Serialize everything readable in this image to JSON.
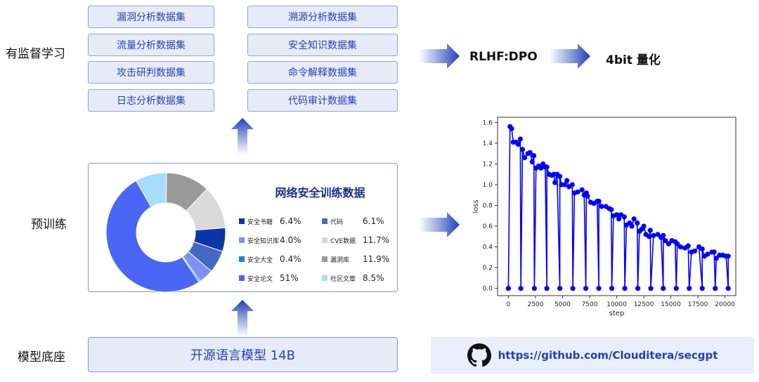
{
  "stages": {
    "sft": "有监督学习",
    "pretrain": "预训练",
    "base": "模型底座"
  },
  "datasets": [
    "漏洞分析数据集",
    "溯源分析数据集",
    "流量分析数据集",
    "安全知识数据集",
    "攻击研判数据集",
    "命令解释数据集",
    "日志分析数据集",
    "代码审计数据集"
  ],
  "pipeline": {
    "rlhf": "RLHF:DPO",
    "quant": "4bit 量化"
  },
  "base_model": "开源语言模型 14B",
  "github": {
    "icon": "github-icon",
    "url": "https://github.com/Clouditera/secgpt"
  },
  "colors": {
    "accent": "#2342b8",
    "box_bg": "#e6ebf7",
    "line": "#0000ff"
  },
  "chart_data": [
    {
      "type": "pie",
      "donut": true,
      "title": "网络安全训练数据",
      "slices": [
        {
          "label": "安全书籍",
          "value": 6.4,
          "text": "6.4%",
          "color": "#0b37a6"
        },
        {
          "label": "代码",
          "value": 6.1,
          "text": "6.1%",
          "color": "#4568c2"
        },
        {
          "label": "安全知识库",
          "value": 4.0,
          "text": "4.0%",
          "color": "#7b92f2"
        },
        {
          "label": "CVE数据",
          "value": 11.7,
          "text": "11.7%",
          "color": "#d9d9d9"
        },
        {
          "label": "安全大全",
          "value": 0.4,
          "text": "0.4%",
          "color": "#1a86cf"
        },
        {
          "label": "漏洞库",
          "value": 11.9,
          "text": "11.9%",
          "color": "#9a9a9a"
        },
        {
          "label": "安全论文",
          "value": 51,
          "text": "51%",
          "color": "#4a66f6"
        },
        {
          "label": "社区文章",
          "value": 8.5,
          "text": "8.5%",
          "color": "#a6ddfa"
        }
      ],
      "clockwise_order": [
        "社区文章",
        "漏洞库",
        "CVE数据",
        "安全书籍",
        "代码",
        "安全知识库",
        "安全大全",
        "安全论文"
      ]
    },
    {
      "type": "line",
      "xlabel": "step",
      "ylabel": "loss",
      "xlim": [
        -1000,
        21000
      ],
      "ylim": [
        -0.07,
        1.65
      ],
      "xticks": [
        0,
        2500,
        5000,
        7500,
        10000,
        12500,
        15000,
        17500,
        20000
      ],
      "yticks": [
        "0.0",
        "0.2",
        "0.4",
        "0.6",
        "0.8",
        "1.0",
        "1.2",
        "1.4",
        "1.6"
      ],
      "grid": false,
      "series_color": "#0000ff",
      "zero_steps": [
        0,
        1150,
        2400,
        3550,
        4750,
        5950,
        7150,
        8350,
        9550,
        10750,
        11950,
        13150,
        14300,
        15500,
        16700,
        17900,
        19100,
        20300
      ],
      "points": [
        [
          150,
          1.56
        ],
        [
          300,
          1.54
        ],
        [
          450,
          1.41
        ],
        [
          700,
          1.41
        ],
        [
          900,
          1.39
        ],
        [
          1100,
          1.44
        ],
        [
          1300,
          1.34
        ],
        [
          1500,
          1.26
        ],
        [
          1800,
          1.3
        ],
        [
          2000,
          1.31
        ],
        [
          2200,
          1.22
        ],
        [
          2350,
          1.28
        ],
        [
          2550,
          1.16
        ],
        [
          2800,
          1.18
        ],
        [
          3000,
          1.16
        ],
        [
          3200,
          1.2
        ],
        [
          3400,
          1.17
        ],
        [
          3550,
          1.17
        ],
        [
          3750,
          1.1
        ],
        [
          4000,
          1.09
        ],
        [
          4200,
          1.1
        ],
        [
          4300,
          1.02
        ],
        [
          4500,
          1.1
        ],
        [
          4750,
          1.08
        ],
        [
          4900,
          1.0
        ],
        [
          5200,
          1.0
        ],
        [
          5400,
          1.04
        ],
        [
          5600,
          0.98
        ],
        [
          5900,
          1.0
        ],
        [
          6100,
          0.92
        ],
        [
          6400,
          0.93
        ],
        [
          6800,
          0.95
        ],
        [
          7000,
          0.9
        ],
        [
          7200,
          0.92
        ],
        [
          7300,
          0.89
        ],
        [
          7600,
          0.83
        ],
        [
          7900,
          0.82
        ],
        [
          8200,
          0.84
        ],
        [
          8350,
          0.84
        ],
        [
          8600,
          0.79
        ],
        [
          9000,
          0.79
        ],
        [
          9300,
          0.77
        ],
        [
          9500,
          0.76
        ],
        [
          9700,
          0.7
        ],
        [
          10000,
          0.71
        ],
        [
          10200,
          0.67
        ],
        [
          10400,
          0.71
        ],
        [
          10700,
          0.69
        ],
        [
          10900,
          0.61
        ],
        [
          11200,
          0.63
        ],
        [
          11400,
          0.6
        ],
        [
          11600,
          0.67
        ],
        [
          11900,
          0.63
        ],
        [
          12100,
          0.55
        ],
        [
          12300,
          0.57
        ],
        [
          12500,
          0.6
        ],
        [
          12700,
          0.52
        ],
        [
          13000,
          0.5
        ],
        [
          13100,
          0.56
        ],
        [
          13400,
          0.51
        ],
        [
          13800,
          0.52
        ],
        [
          14100,
          0.49
        ],
        [
          14300,
          0.51
        ],
        [
          14500,
          0.46
        ],
        [
          14800,
          0.43
        ],
        [
          15100,
          0.46
        ],
        [
          15400,
          0.45
        ],
        [
          15600,
          0.43
        ],
        [
          15900,
          0.4
        ],
        [
          16300,
          0.39
        ],
        [
          16600,
          0.41
        ],
        [
          16900,
          0.35
        ],
        [
          17200,
          0.36
        ],
        [
          17600,
          0.4
        ],
        [
          17900,
          0.38
        ],
        [
          18100,
          0.31
        ],
        [
          18400,
          0.33
        ],
        [
          18800,
          0.35
        ],
        [
          19000,
          0.35
        ],
        [
          19200,
          0.29
        ],
        [
          19500,
          0.32
        ],
        [
          19800,
          0.32
        ],
        [
          20100,
          0.31
        ],
        [
          20300,
          0.31
        ]
      ]
    }
  ]
}
